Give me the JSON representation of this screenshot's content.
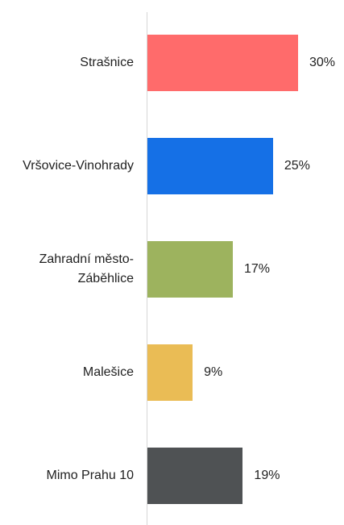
{
  "chart_data": {
    "type": "bar",
    "orientation": "horizontal",
    "categories": [
      "Strašnice",
      "Vršovice-Vinohrady",
      "Zahradní město-Záběhlice",
      "Malešice",
      "Mimo Prahu 10"
    ],
    "values": [
      30,
      25,
      17,
      9,
      19
    ],
    "value_labels": [
      "30%",
      "25%",
      "17%",
      "9%",
      "19%"
    ],
    "colors": [
      "#ff6b6b",
      "#1570e6",
      "#9db35e",
      "#eabc55",
      "#4f5254"
    ]
  }
}
